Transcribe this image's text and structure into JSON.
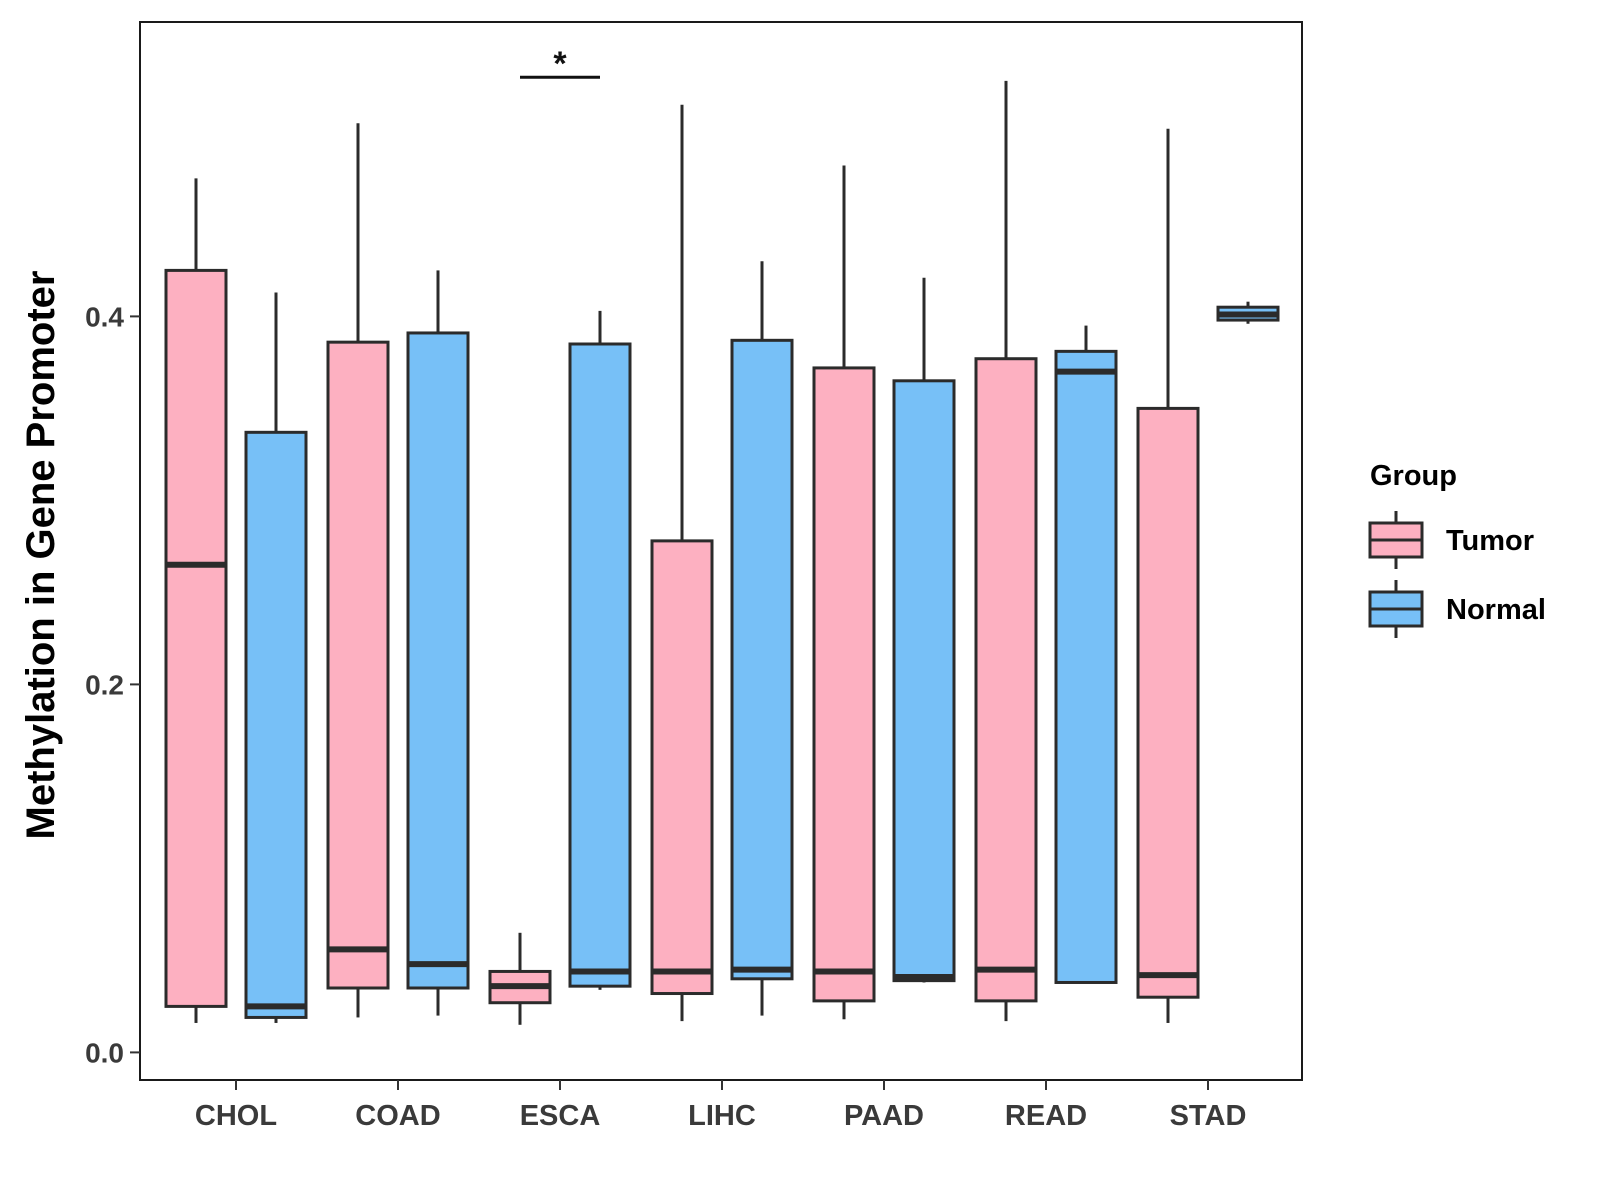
{
  "chart_data": {
    "type": "box",
    "title": "",
    "xlabel": "",
    "ylabel": "Methylation in Gene Promoter",
    "ylim": [
      -0.015,
      0.56
    ],
    "yticks": [
      0.0,
      0.2,
      0.4
    ],
    "ytick_labels": [
      "0.0",
      "0.2",
      "0.4"
    ],
    "categories": [
      "CHOL",
      "COAD",
      "ESCA",
      "LIHC",
      "PAAD",
      "READ",
      "STAD"
    ],
    "legend": {
      "title": "Group",
      "position": "right",
      "entries": [
        {
          "name": "Tumor",
          "color": "#fdb0c1"
        },
        {
          "name": "Normal",
          "color": "#77c0f7"
        }
      ]
    },
    "outline_color": "#2b2b2b",
    "series": [
      {
        "name": "Tumor",
        "boxes": [
          {
            "category": "CHOL",
            "whisker_low": 0.016,
            "q1": 0.025,
            "median": 0.265,
            "q3": 0.425,
            "whisker_high": 0.475
          },
          {
            "category": "COAD",
            "whisker_low": 0.019,
            "q1": 0.035,
            "median": 0.056,
            "q3": 0.386,
            "whisker_high": 0.505
          },
          {
            "category": "ESCA",
            "whisker_low": 0.015,
            "q1": 0.027,
            "median": 0.036,
            "q3": 0.044,
            "whisker_high": 0.065
          },
          {
            "category": "LIHC",
            "whisker_low": 0.017,
            "q1": 0.032,
            "median": 0.044,
            "q3": 0.278,
            "whisker_high": 0.515
          },
          {
            "category": "PAAD",
            "whisker_low": 0.018,
            "q1": 0.028,
            "median": 0.044,
            "q3": 0.372,
            "whisker_high": 0.482
          },
          {
            "category": "READ",
            "whisker_low": 0.017,
            "q1": 0.028,
            "median": 0.045,
            "q3": 0.377,
            "whisker_high": 0.528
          },
          {
            "category": "STAD",
            "whisker_low": 0.016,
            "q1": 0.03,
            "median": 0.042,
            "q3": 0.35,
            "whisker_high": 0.502
          }
        ]
      },
      {
        "name": "Normal",
        "boxes": [
          {
            "category": "CHOL",
            "whisker_low": 0.016,
            "q1": 0.019,
            "median": 0.025,
            "q3": 0.337,
            "whisker_high": 0.413
          },
          {
            "category": "COAD",
            "whisker_low": 0.02,
            "q1": 0.035,
            "median": 0.048,
            "q3": 0.391,
            "whisker_high": 0.425
          },
          {
            "category": "ESCA",
            "whisker_low": 0.034,
            "q1": 0.036,
            "median": 0.044,
            "q3": 0.385,
            "whisker_high": 0.403
          },
          {
            "category": "LIHC",
            "whisker_low": 0.02,
            "q1": 0.04,
            "median": 0.045,
            "q3": 0.387,
            "whisker_high": 0.43
          },
          {
            "category": "PAAD",
            "whisker_low": 0.038,
            "q1": 0.039,
            "median": 0.041,
            "q3": 0.365,
            "whisker_high": 0.421
          },
          {
            "category": "READ",
            "whisker_low": 0.038,
            "q1": 0.038,
            "median": 0.37,
            "q3": 0.381,
            "whisker_high": 0.395
          },
          {
            "category": "STAD",
            "whisker_low": 0.396,
            "q1": 0.398,
            "median": 0.401,
            "q3": 0.405,
            "whisker_high": 0.408
          }
        ]
      }
    ],
    "annotations": [
      {
        "text": "*",
        "category": "ESCA",
        "y": 0.53
      }
    ]
  }
}
